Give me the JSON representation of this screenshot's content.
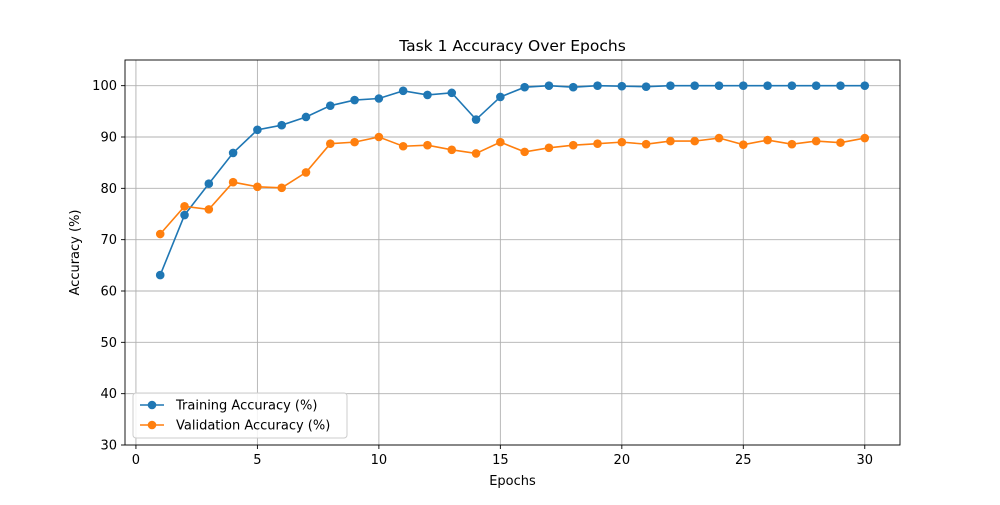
{
  "chart_data": {
    "type": "line",
    "title": "Task 1 Accuracy Over Epochs",
    "xlabel": "Epochs",
    "ylabel": "Accuracy (%)",
    "xlim": [
      -0.45,
      31.45
    ],
    "ylim": [
      30,
      105
    ],
    "x_ticks": [
      0,
      5,
      10,
      15,
      20,
      25,
      30
    ],
    "y_ticks": [
      30,
      40,
      50,
      60,
      70,
      80,
      90,
      100
    ],
    "grid": true,
    "legend_position": "lower-left",
    "x": [
      1,
      2,
      3,
      4,
      5,
      6,
      7,
      8,
      9,
      10,
      11,
      12,
      13,
      14,
      15,
      16,
      17,
      18,
      19,
      20,
      21,
      22,
      23,
      24,
      25,
      26,
      27,
      28,
      29,
      30
    ],
    "series": [
      {
        "name": "Training Accuracy (%)",
        "color": "#1f77b4",
        "marker": "circle",
        "values": [
          63.1,
          74.8,
          80.9,
          86.9,
          91.4,
          92.3,
          93.9,
          96.1,
          97.2,
          97.5,
          99.0,
          98.2,
          98.6,
          93.4,
          97.8,
          99.7,
          100.0,
          99.7,
          100.0,
          99.9,
          99.8,
          100.0,
          100.0,
          100.0,
          100.0,
          100.0,
          100.0,
          100.0,
          100.0,
          100.0
        ]
      },
      {
        "name": "Validation Accuracy (%)",
        "color": "#ff7f0e",
        "marker": "circle",
        "values": [
          71.1,
          76.5,
          75.9,
          81.2,
          80.3,
          80.1,
          83.1,
          88.7,
          89.0,
          90.0,
          88.2,
          88.4,
          87.5,
          86.8,
          89.0,
          87.1,
          87.9,
          88.4,
          88.7,
          89.0,
          88.6,
          89.2,
          89.2,
          89.8,
          88.5,
          89.4,
          88.6,
          89.2,
          88.9,
          89.8
        ]
      }
    ]
  }
}
